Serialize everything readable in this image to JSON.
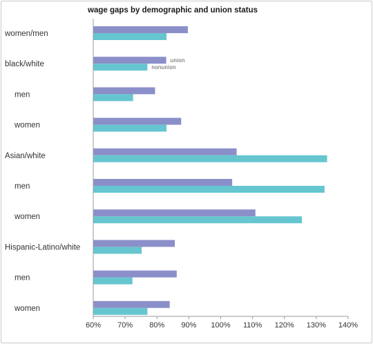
{
  "chart_data": {
    "type": "bar",
    "orientation": "horizontal",
    "title": "wage gaps by demographic and union status",
    "xlabel": "",
    "ylabel": "",
    "categories": [
      {
        "label": "women/men",
        "indent": false
      },
      {
        "label": "black/white",
        "indent": false
      },
      {
        "label": "men",
        "indent": true
      },
      {
        "label": "women",
        "indent": true
      },
      {
        "label": "Asian/white",
        "indent": false
      },
      {
        "label": "men",
        "indent": true
      },
      {
        "label": "women",
        "indent": true
      },
      {
        "label": "Hispanic-Latino/white",
        "indent": false
      },
      {
        "label": "men",
        "indent": true
      },
      {
        "label": "women",
        "indent": true
      }
    ],
    "series": [
      {
        "name": "union",
        "color": "#8b8fc9",
        "values": [
          89.7,
          82.9,
          79.4,
          87.6,
          105.0,
          103.6,
          110.9,
          85.6,
          86.2,
          84.0
        ]
      },
      {
        "name": "nonunion",
        "color": "#66c6d0",
        "values": [
          83.0,
          77.0,
          72.5,
          83.0,
          133.4,
          132.6,
          125.5,
          75.2,
          72.3,
          77.0
        ]
      }
    ],
    "legend": {
      "placement": "inline-at-black/white",
      "labels": [
        "union",
        "nonunion"
      ]
    },
    "xlim": [
      60,
      140
    ],
    "xticks": [
      60,
      70,
      80,
      90,
      100,
      110,
      120,
      130,
      140
    ],
    "tick_suffix": "%",
    "grid": false
  }
}
